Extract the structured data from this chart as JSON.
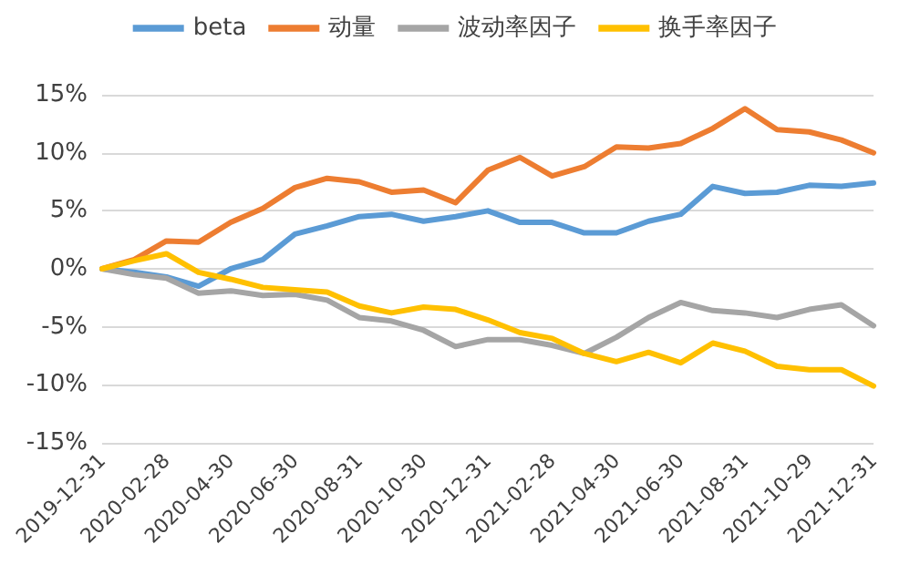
{
  "chart_data": {
    "type": "line",
    "categories": [
      "2019-12-31",
      null,
      "2020-02-28",
      null,
      "2020-04-30",
      null,
      "2020-06-30",
      null,
      "2020-08-31",
      null,
      "2020-10-30",
      null,
      "2020-12-31",
      null,
      "2021-02-28",
      null,
      "2021-04-30",
      null,
      "2021-06-30",
      null,
      "2021-08-31",
      null,
      "2021-10-29",
      null,
      "2021-12-31"
    ],
    "series": [
      {
        "name": "beta",
        "color": "#5b9bd5",
        "values": [
          0,
          -0.3,
          -0.7,
          -1.5,
          0,
          0.8,
          3.0,
          3.7,
          4.5,
          4.7,
          4.1,
          4.5,
          5.0,
          4.0,
          4.0,
          3.1,
          3.1,
          4.1,
          4.7,
          7.1,
          6.5,
          6.6,
          7.2,
          7.1,
          7.4
        ]
      },
      {
        "name": "动量",
        "color": "#ed7d31",
        "values": [
          0,
          0.8,
          2.4,
          2.3,
          4.0,
          5.2,
          7.0,
          7.8,
          7.5,
          6.6,
          6.8,
          5.7,
          8.5,
          9.6,
          8.0,
          8.8,
          10.5,
          10.4,
          10.8,
          12.1,
          13.8,
          12.0,
          11.8,
          11.1,
          10.0
        ]
      },
      {
        "name": "波动率因子",
        "color": "#a5a5a5",
        "values": [
          0,
          -0.5,
          -0.8,
          -2.1,
          -1.9,
          -2.3,
          -2.2,
          -2.7,
          -4.2,
          -4.5,
          -5.3,
          -6.7,
          -6.1,
          -6.1,
          -6.6,
          -7.3,
          -5.9,
          -4.2,
          -2.9,
          -3.6,
          -3.8,
          -4.2,
          -3.5,
          -3.1,
          -4.9
        ]
      },
      {
        "name": "换手率因子",
        "color": "#ffc000",
        "values": [
          0,
          0.7,
          1.3,
          -0.3,
          -0.9,
          -1.6,
          -1.8,
          -2.0,
          -3.2,
          -3.8,
          -3.3,
          -3.5,
          -4.4,
          -5.5,
          -6.0,
          -7.3,
          -8.0,
          -7.2,
          -8.1,
          -6.4,
          -7.1,
          -8.4,
          -8.7,
          -8.7,
          -10.1
        ]
      }
    ],
    "ylim": [
      -15,
      15
    ],
    "yticks": [
      {
        "value": -15,
        "label": "-15%"
      },
      {
        "value": -10,
        "label": "-10%"
      },
      {
        "value": -5,
        "label": "-5%"
      },
      {
        "value": 0,
        "label": "0%"
      },
      {
        "value": 5,
        "label": "5%"
      },
      {
        "value": 10,
        "label": "10%"
      },
      {
        "value": 15,
        "label": "15%"
      }
    ],
    "grid": "y",
    "legend": "top",
    "marker": "none",
    "line_style": "solid"
  }
}
